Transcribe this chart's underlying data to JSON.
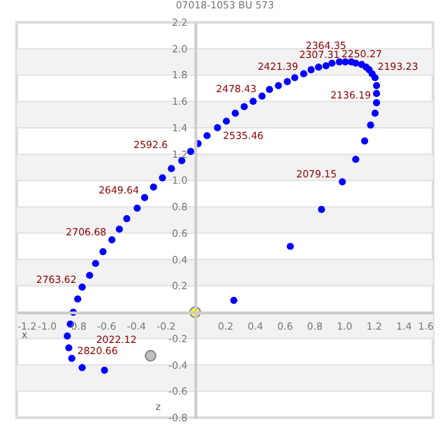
{
  "chart_data": {
    "type": "scatter",
    "title": "07018-1053 BU   573",
    "xlabel": "x",
    "ylabel": "z",
    "series": [
      {
        "color": "#0000ff",
        "x": [
          -0.61,
          -0.76,
          -0.83,
          -0.85,
          -0.86,
          -0.84,
          -0.82,
          -0.79,
          -0.76,
          -0.71,
          -0.67,
          -0.62,
          -0.56,
          -0.51,
          -0.46,
          -0.39,
          -0.34,
          -0.28,
          -0.22,
          -0.16,
          -0.09,
          -0.03,
          0.02,
          0.08,
          0.15,
          0.21,
          0.27,
          0.33,
          0.39,
          0.45,
          0.5,
          0.56,
          0.62,
          0.67,
          0.73,
          0.78,
          0.83,
          0.88,
          0.92,
          0.97,
          1.01,
          1.05,
          1.08,
          1.12,
          1.15,
          1.17,
          1.19,
          1.21,
          1.22,
          1.22,
          1.22,
          1.21,
          1.18,
          1.14,
          1.08,
          0.99,
          0.85,
          0.64,
          0.26
        ],
        "values": [
          -0.44,
          -0.42,
          -0.35,
          -0.27,
          -0.18,
          -0.09,
          0.0,
          0.1,
          0.19,
          0.28,
          0.37,
          0.46,
          0.55,
          0.63,
          0.71,
          0.79,
          0.87,
          0.95,
          1.02,
          1.09,
          1.15,
          1.22,
          1.28,
          1.34,
          1.4,
          1.45,
          1.51,
          1.56,
          1.6,
          1.64,
          1.69,
          1.72,
          1.75,
          1.78,
          1.81,
          1.84,
          1.86,
          1.87,
          1.89,
          1.9,
          1.9,
          1.9,
          1.89,
          1.88,
          1.86,
          1.84,
          1.81,
          1.78,
          1.72,
          1.66,
          1.59,
          1.51,
          1.42,
          1.3,
          1.16,
          0.99,
          0.78,
          0.5,
          0.09
        ]
      },
      {
        "color": "#ffff00",
        "x": [
          0
        ],
        "values": [
          0
        ]
      },
      {
        "color": "#c0c0c0",
        "x": [
          -0.3
        ],
        "values": [
          -0.33
        ]
      }
    ],
    "annotations": [
      {
        "text": "2820.66",
        "x": -0.83,
        "y": -0.35
      },
      {
        "text": "2763.62",
        "x": -0.76,
        "y": 0.19
      },
      {
        "text": "2706.68",
        "x": -0.56,
        "y": 0.55
      },
      {
        "text": "2649.64",
        "x": -0.34,
        "y": 0.87
      },
      {
        "text": "2592.6",
        "x": -0.09,
        "y": 1.15
      },
      {
        "text": "2535.46",
        "x": 0.15,
        "y": 1.4
      },
      {
        "text": "2478.43",
        "x": 0.45,
        "y": 1.64
      },
      {
        "text": "2421.39",
        "x": 0.73,
        "y": 1.81
      },
      {
        "text": "2364.35",
        "x": 0.88,
        "y": 1.87
      },
      {
        "text": "2307.31",
        "x": 1.01,
        "y": 1.9
      },
      {
        "text": "2250.27",
        "x": 1.12,
        "y": 1.88
      },
      {
        "text": "2193.23",
        "x": 1.19,
        "y": 1.81
      },
      {
        "text": "2136.19",
        "x": 1.22,
        "y": 1.59
      },
      {
        "text": "2079.15",
        "x": 0.99,
        "y": 0.99
      },
      {
        "text": "2022.12",
        "x": -0.3,
        "y": -0.33
      }
    ],
    "xlim": [
      -1.2,
      1.6
    ],
    "xticks": [
      -1.2,
      {
        "value": -1,
        "label": "-1.0"
      },
      -0.8,
      -0.6,
      -0.4,
      -0.2,
      0.2,
      0.4,
      0.6,
      0.8,
      {
        "value": 1,
        "label": "1.0"
      },
      1.2,
      1.4,
      1.6
    ],
    "ylim": [
      -0.8,
      2.2
    ],
    "yticks": [
      -0.8,
      -0.6,
      -0.4,
      -0.2,
      0.2,
      0.4,
      0.6,
      0.8,
      {
        "value": 1,
        "label": "1.0"
      },
      1.2,
      1.4,
      1.6,
      1.8,
      {
        "value": 2,
        "label": "2.0"
      },
      2.2
    ],
    "grid": "y",
    "marker": "circle"
  }
}
